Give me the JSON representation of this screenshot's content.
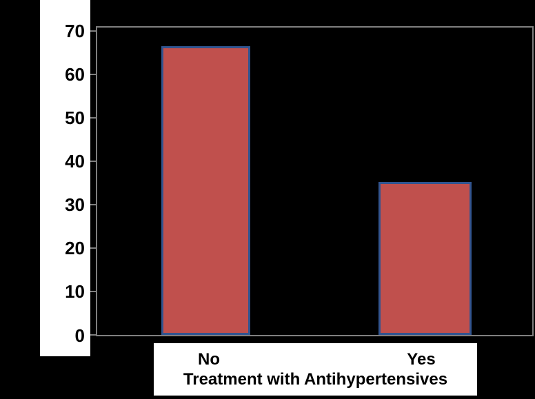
{
  "figure": {
    "background_color": "#000000",
    "frame_color": "#7f7f7f",
    "panel_color": "#ffffff",
    "text_color": "#000000"
  },
  "chart_data": {
    "type": "bar",
    "title": "",
    "categories": [
      "No",
      "Yes"
    ],
    "values": [
      66,
      35
    ],
    "xlabel": "Treatment with Antihypertensives",
    "ylabel": "",
    "ylim": [
      0,
      70
    ],
    "ytick_labels": [
      "70",
      "60",
      "50",
      "40",
      "30",
      "20",
      "10",
      "0"
    ],
    "grid": false,
    "legend": "none",
    "bar_fill": "#c0504d",
    "bar_border": "#31548f"
  }
}
